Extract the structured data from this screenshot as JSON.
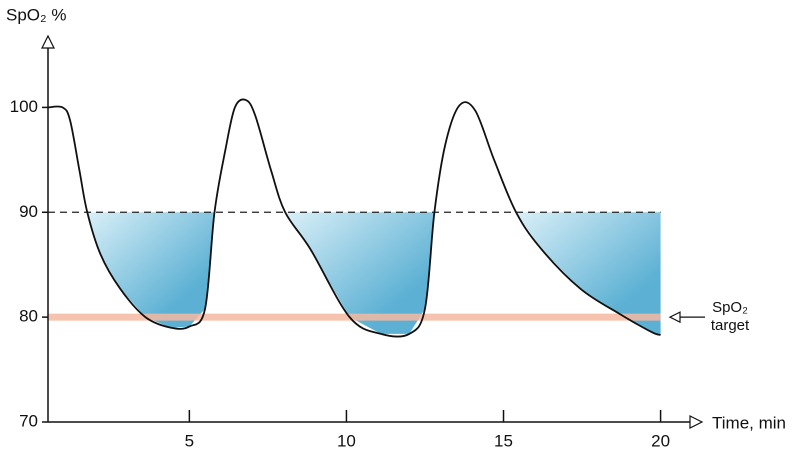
{
  "chart_data": {
    "type": "line",
    "y_label": "SpO₂ %",
    "x_label": "Time, min",
    "annotation": {
      "lines": [
        "SpO₂",
        "target"
      ]
    },
    "x": [
      0.5,
      0.96,
      1.2,
      1.5,
      1.75,
      2.17,
      2.8,
      3.6,
      4.4,
      5.0,
      5.5,
      5.8,
      6.15,
      6.45,
      6.8,
      7.1,
      7.6,
      8.05,
      8.85,
      10.1,
      11.1,
      12.0,
      12.5,
      12.8,
      13.15,
      13.6,
      14.1,
      14.7,
      15.4,
      16.2,
      17.45,
      18.7,
      19.7,
      20.0
    ],
    "series": [
      {
        "color": "#111111",
        "values": [
          100,
          100,
          98.8,
          94,
          90,
          86,
          82.7,
          80,
          79,
          79.1,
          80.8,
          90,
          96,
          100,
          100.7,
          99.2,
          94,
          90,
          86.5,
          80,
          78.4,
          78.4,
          80.8,
          90,
          96.5,
          100.2,
          99.7,
          95,
          90,
          86.5,
          82.7,
          80.3,
          78.6,
          78.3
        ]
      }
    ],
    "threshold": 90,
    "target": 80,
    "target_color": "#f4b8a0",
    "shade_colors": [
      "#d6eef7",
      "#4aa8cf"
    ],
    "xlim": [
      0.5,
      21
    ],
    "ylim": [
      70,
      107
    ],
    "xticks": [
      5,
      10,
      15,
      20
    ],
    "yticks": [
      70,
      80,
      90,
      100
    ]
  }
}
